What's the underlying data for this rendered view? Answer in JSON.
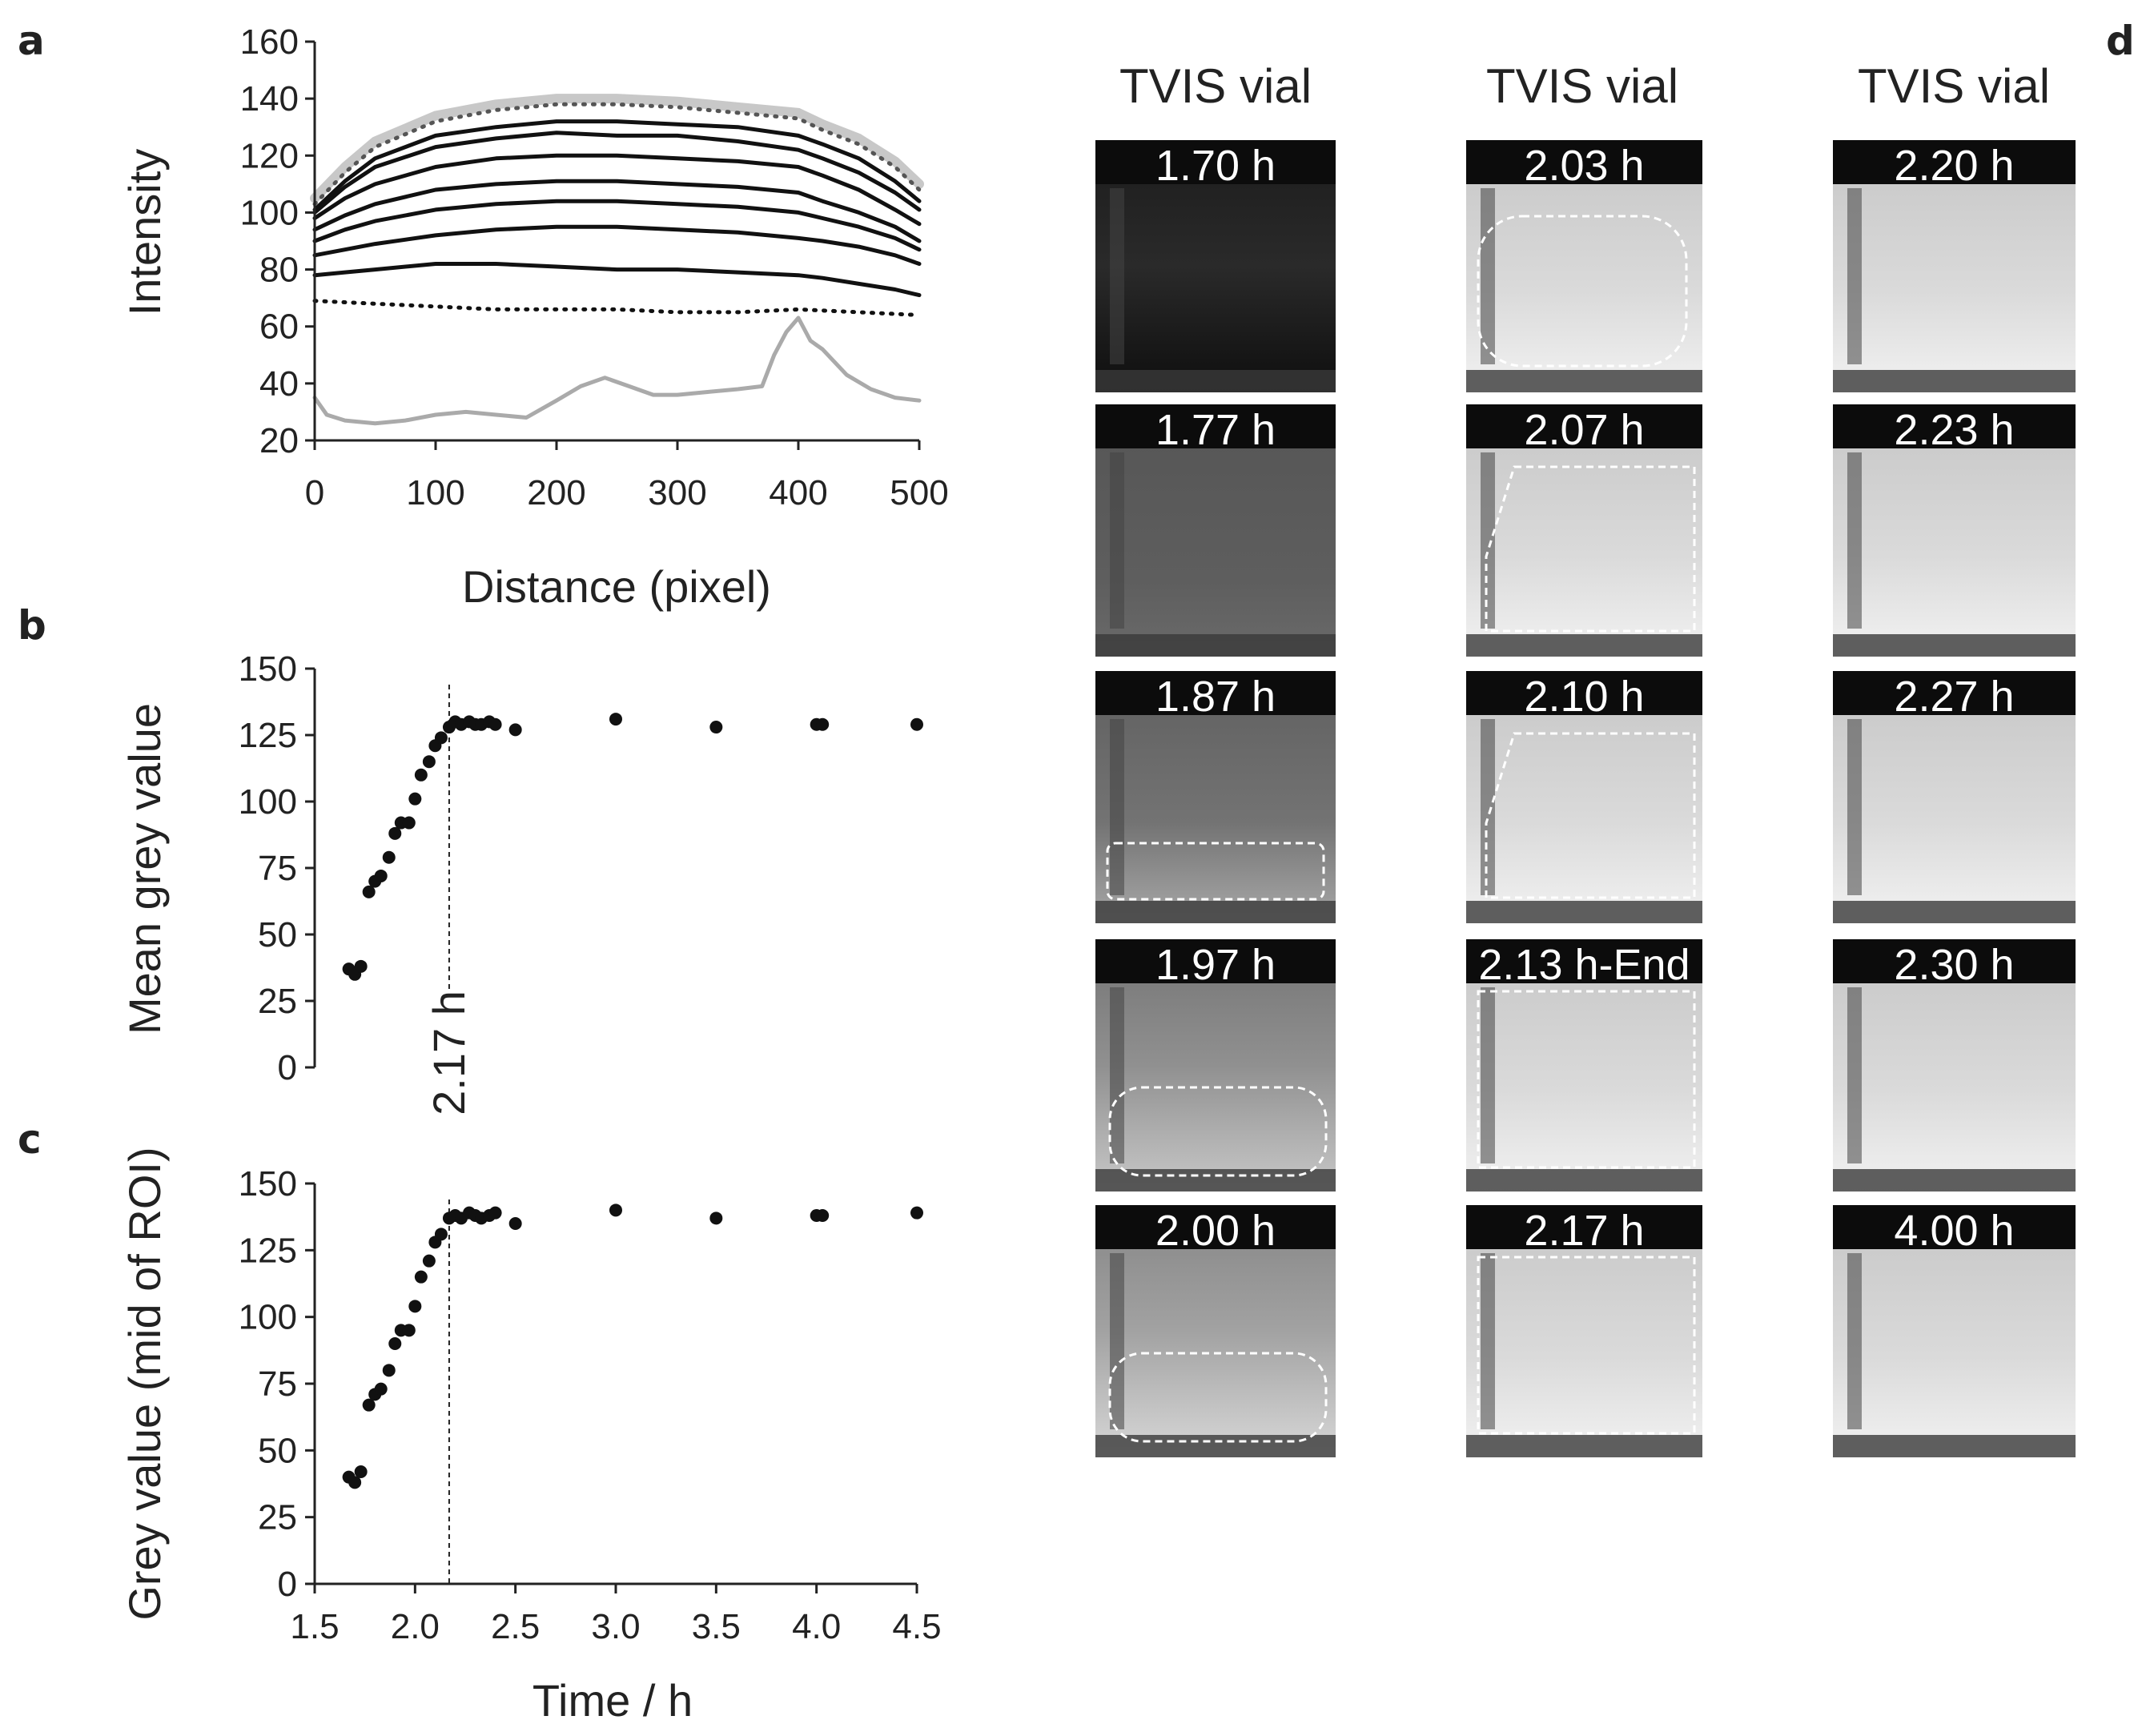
{
  "panels": {
    "a": "a",
    "b": "b",
    "c": "c",
    "d": "d"
  },
  "chart_data": [
    {
      "panel": "a",
      "type": "line",
      "xlabel": "Distance (pixel)",
      "ylabel": "Intensity",
      "xlim": [
        0,
        500
      ],
      "ylim": [
        20,
        160
      ],
      "xticks": [
        0,
        100,
        200,
        300,
        400,
        500
      ],
      "yticks": [
        20,
        40,
        60,
        80,
        100,
        120,
        140,
        160
      ],
      "grid": false,
      "series": [
        {
          "style": "grey-thick",
          "color": "#c8c8c8",
          "x": [
            0,
            25,
            50,
            100,
            150,
            200,
            250,
            300,
            350,
            400,
            420,
            450,
            480,
            500
          ],
          "y": [
            105,
            116,
            125,
            134,
            138,
            140,
            140,
            139,
            137,
            135,
            131,
            126,
            118,
            110
          ]
        },
        {
          "style": "dotted",
          "color": "#555555",
          "x": [
            0,
            25,
            50,
            100,
            150,
            200,
            250,
            300,
            350,
            400,
            420,
            450,
            480,
            500
          ],
          "y": [
            103,
            114,
            123,
            132,
            136,
            138,
            138,
            137,
            135,
            133,
            129,
            124,
            116,
            108
          ]
        },
        {
          "style": "solid",
          "color": "#111111",
          "x": [
            0,
            25,
            50,
            100,
            150,
            200,
            250,
            300,
            350,
            400,
            420,
            450,
            480,
            500
          ],
          "y": [
            101,
            111,
            119,
            127,
            130,
            132,
            132,
            131,
            130,
            127,
            124,
            119,
            111,
            104
          ]
        },
        {
          "style": "solid",
          "color": "#111111",
          "x": [
            0,
            25,
            50,
            100,
            150,
            200,
            250,
            300,
            350,
            400,
            420,
            450,
            480,
            500
          ],
          "y": [
            100,
            109,
            116,
            123,
            126,
            128,
            127,
            127,
            125,
            122,
            119,
            114,
            107,
            101
          ]
        },
        {
          "style": "solid",
          "color": "#111111",
          "x": [
            0,
            25,
            50,
            100,
            150,
            200,
            250,
            300,
            350,
            400,
            420,
            450,
            480,
            500
          ],
          "y": [
            98,
            105,
            110,
            116,
            119,
            120,
            120,
            119,
            118,
            116,
            113,
            108,
            101,
            96
          ]
        },
        {
          "style": "solid",
          "color": "#111111",
          "x": [
            0,
            25,
            50,
            100,
            150,
            200,
            250,
            300,
            350,
            400,
            420,
            450,
            480,
            500
          ],
          "y": [
            94,
            99,
            103,
            108,
            110,
            111,
            111,
            110,
            109,
            107,
            104,
            100,
            95,
            90
          ]
        },
        {
          "style": "solid",
          "color": "#111111",
          "x": [
            0,
            25,
            50,
            100,
            150,
            200,
            250,
            300,
            350,
            400,
            420,
            450,
            480,
            500
          ],
          "y": [
            90,
            94,
            97,
            101,
            103,
            104,
            104,
            103,
            102,
            100,
            98,
            95,
            91,
            87
          ]
        },
        {
          "style": "solid",
          "color": "#111111",
          "x": [
            0,
            25,
            50,
            100,
            150,
            200,
            250,
            300,
            350,
            400,
            420,
            450,
            480,
            500
          ],
          "y": [
            85,
            87,
            89,
            92,
            94,
            95,
            95,
            94,
            93,
            91,
            90,
            88,
            85,
            82
          ]
        },
        {
          "style": "solid",
          "color": "#111111",
          "x": [
            0,
            25,
            50,
            100,
            150,
            200,
            250,
            300,
            350,
            400,
            420,
            450,
            480,
            500
          ],
          "y": [
            78,
            79,
            80,
            82,
            82,
            81,
            80,
            80,
            79,
            78,
            77,
            75,
            73,
            71
          ]
        },
        {
          "style": "dotted",
          "color": "#111111",
          "x": [
            0,
            50,
            100,
            150,
            200,
            250,
            300,
            350,
            400,
            450,
            500
          ],
          "y": [
            69,
            68,
            67,
            66,
            66,
            66,
            65,
            65,
            66,
            65,
            64
          ]
        },
        {
          "style": "grey",
          "color": "#aaaaaa",
          "x": [
            0,
            10,
            25,
            50,
            75,
            100,
            125,
            150,
            175,
            200,
            220,
            240,
            260,
            280,
            300,
            325,
            350,
            370,
            380,
            390,
            400,
            410,
            420,
            440,
            460,
            480,
            500
          ],
          "y": [
            35,
            29,
            27,
            26,
            27,
            29,
            30,
            29,
            28,
            34,
            39,
            42,
            39,
            36,
            36,
            37,
            38,
            39,
            50,
            58,
            63,
            55,
            52,
            43,
            38,
            35,
            34
          ]
        }
      ]
    },
    {
      "panel": "b",
      "type": "scatter",
      "xlabel": "",
      "ylabel": "Mean grey value",
      "xlim": [
        1.5,
        4.5
      ],
      "ylim": [
        0,
        150
      ],
      "yticks": [
        0,
        25,
        50,
        75,
        100,
        125,
        150
      ],
      "vline": {
        "x": 2.17,
        "label": "2.17 h"
      },
      "x": [
        1.67,
        1.7,
        1.73,
        1.77,
        1.8,
        1.83,
        1.87,
        1.9,
        1.93,
        1.97,
        2.0,
        2.03,
        2.07,
        2.1,
        2.13,
        2.17,
        2.2,
        2.23,
        2.27,
        2.3,
        2.33,
        2.37,
        2.4,
        2.5,
        3.0,
        3.5,
        4.0,
        4.03,
        4.5
      ],
      "y": [
        37,
        35,
        38,
        66,
        70,
        72,
        79,
        88,
        92,
        92,
        101,
        110,
        115,
        121,
        124,
        128,
        130,
        129,
        130,
        129,
        129,
        130,
        129,
        127,
        131,
        128,
        129,
        129,
        129
      ]
    },
    {
      "panel": "c",
      "type": "scatter",
      "xlabel": "Time  / h",
      "ylabel": "Grey value  (mid of ROI)",
      "xlim": [
        1.5,
        4.5
      ],
      "ylim": [
        0,
        150
      ],
      "xticks": [
        1.5,
        2.0,
        2.5,
        3.0,
        3.5,
        4.0,
        4.5
      ],
      "xticklabels": [
        "1.5",
        "2.0",
        "2.5",
        "3.0",
        "3.5",
        "4.0",
        "4.5"
      ],
      "yticks": [
        0,
        25,
        50,
        75,
        100,
        125,
        150
      ],
      "vline": {
        "x": 2.17
      },
      "x": [
        1.67,
        1.7,
        1.73,
        1.77,
        1.8,
        1.83,
        1.87,
        1.9,
        1.93,
        1.97,
        2.0,
        2.03,
        2.07,
        2.1,
        2.13,
        2.17,
        2.2,
        2.23,
        2.27,
        2.3,
        2.33,
        2.37,
        2.4,
        2.5,
        3.0,
        3.5,
        4.0,
        4.03,
        4.5
      ],
      "y": [
        40,
        38,
        42,
        67,
        71,
        73,
        80,
        90,
        95,
        95,
        104,
        115,
        121,
        128,
        131,
        137,
        138,
        137,
        139,
        138,
        137,
        138,
        139,
        135,
        140,
        137,
        138,
        138,
        139
      ]
    }
  ],
  "vial_columns": [
    {
      "title": "TVIS vial",
      "frames": [
        {
          "label": "1.70 h",
          "tone": "dark"
        },
        {
          "label": "1.77 h",
          "tone": "mid1"
        },
        {
          "label": "1.87 h",
          "tone": "mid2",
          "roi": "bottom-band"
        },
        {
          "label": "1.97 h",
          "tone": "mid3",
          "roi": "bottom-rounded"
        },
        {
          "label": "2.00 h",
          "tone": "mid4",
          "roi": "bottom-rounded"
        }
      ]
    },
    {
      "title": "TVIS vial",
      "frames": [
        {
          "label": "2.03 h",
          "tone": "light",
          "roi": "rounded"
        },
        {
          "label": "2.07 h",
          "tone": "light",
          "roi": "slanted"
        },
        {
          "label": "2.10 h",
          "tone": "light",
          "roi": "slanted"
        },
        {
          "label": "2.13 h-End",
          "tone": "light",
          "roi": "rect"
        },
        {
          "label": "2.17 h",
          "tone": "light",
          "roi": "rect"
        }
      ]
    },
    {
      "title": "TVIS vial",
      "frames": [
        {
          "label": "2.20 h",
          "tone": "light"
        },
        {
          "label": "2.23 h",
          "tone": "light"
        },
        {
          "label": "2.27 h",
          "tone": "light"
        },
        {
          "label": "2.30 h",
          "tone": "light"
        },
        {
          "label": "4.00 h",
          "tone": "light"
        }
      ]
    }
  ]
}
